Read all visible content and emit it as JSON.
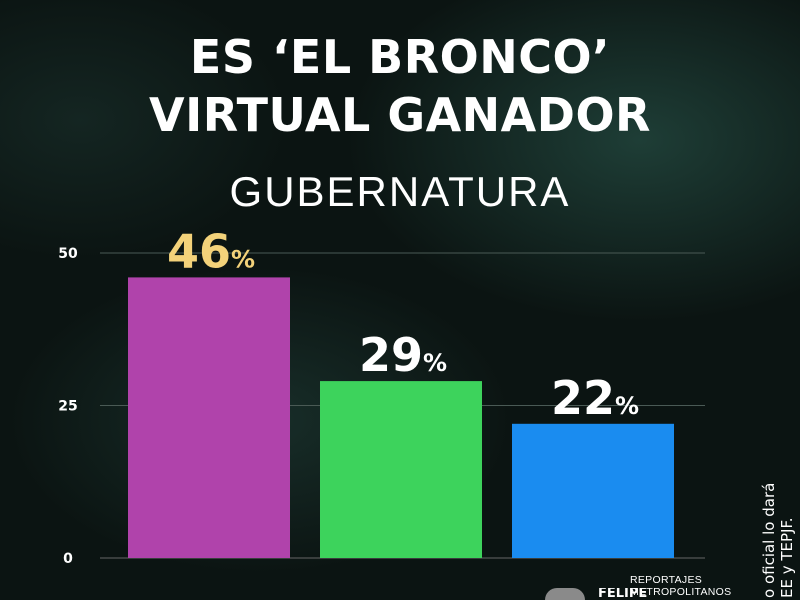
{
  "headline": {
    "line1": "ES ‘EL BRONCO’",
    "line2": "VIRTUAL GANADOR"
  },
  "subtitle": "GUBERNATURA",
  "chart_data": {
    "type": "bar",
    "title": "GUBERNATURA",
    "categories": [
      "",
      "",
      ""
    ],
    "values": [
      46,
      29,
      22
    ],
    "value_labels": [
      "46",
      "29",
      "22"
    ],
    "percent_sign": "%",
    "yticks": [
      "0",
      "25",
      "50"
    ],
    "ytick_values": [
      0,
      25,
      50
    ],
    "ylim": [
      0,
      50
    ],
    "grid": true,
    "bar_colors": [
      "#b043ab",
      "#3dd35c",
      "#1a8cf0"
    ],
    "label_colors": [
      "#f3d27a",
      "#ffffff",
      "#ffffff"
    ]
  },
  "side_note": {
    "line1": "o oficial lo dará",
    "line2": "EE y TEPJF."
  },
  "watermark": "REPORTAJES METROPOLITANOS",
  "partial_name": "FELIPE"
}
